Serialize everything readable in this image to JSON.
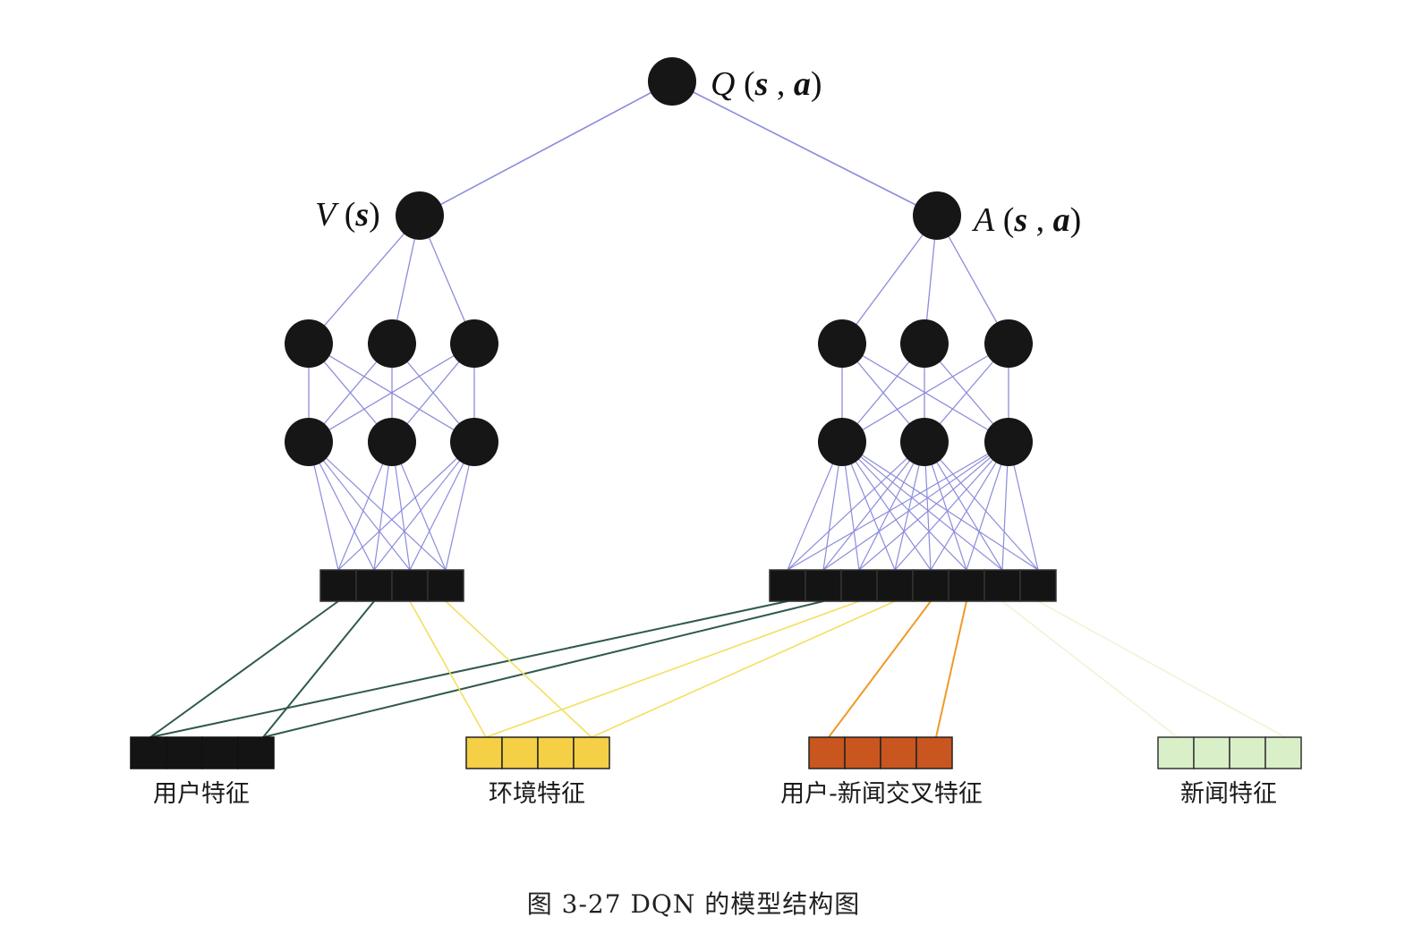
{
  "nodes": {
    "q": {
      "italic": "Q",
      "open": " (",
      "s": "s",
      "comma": " , ",
      "a": "a",
      "close": ")"
    },
    "v": {
      "italic": "V",
      "open": " (",
      "s": "s",
      "close": ")"
    },
    "adv": {
      "italic": "A",
      "open": " (",
      "s": "s",
      "comma": " , ",
      "a": "a",
      "close": ")"
    }
  },
  "feature_groups": [
    {
      "id": "user",
      "label": "用户特征",
      "color": "#141414"
    },
    {
      "id": "env",
      "label": "环境特征",
      "color": "#f5cf45"
    },
    {
      "id": "cross",
      "label": "用户-新闻交叉特征",
      "color": "#c8561e"
    },
    {
      "id": "news",
      "label": "新闻特征",
      "color": "#d9efc8"
    }
  ],
  "colors": {
    "neuron": "#161616",
    "connection": "#8b8cdc",
    "user_link": "#2f5a4c",
    "env_link": "#f3df5e",
    "cross_link": "#ef9a28",
    "news_link": "#f4f1d6"
  },
  "caption": "图 3-27    DQN 的模型结构图"
}
